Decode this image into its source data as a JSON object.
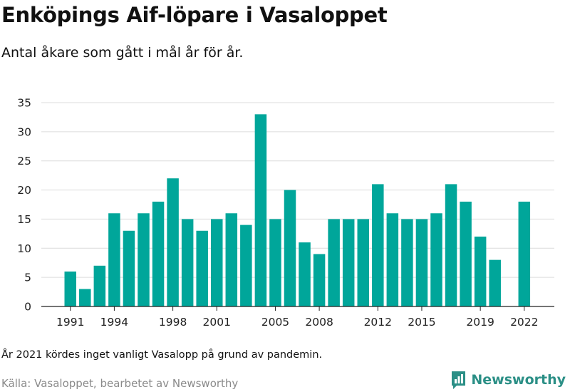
{
  "header": {
    "title": "Enköpings Aif-löpare i Vasaloppet",
    "subtitle": "Antal åkare som gått i mål år för år."
  },
  "footer": {
    "note": "År 2021 kördes inget vanligt Vasalopp på grund av pandemin.",
    "source": "Källa: Vasaloppet, bearbetet av Newsworthy",
    "brand": "Newsworthy"
  },
  "colors": {
    "bar": "#00a69a",
    "grid": "#dcdcdc",
    "axis": "#222222",
    "brand": "#2b8f86"
  },
  "icons": {
    "brand_logo": "newsworthy-logo-icon"
  },
  "chart_data": {
    "type": "bar",
    "title": "Enköpings Aif-löpare i Vasaloppet",
    "subtitle": "Antal åkare som gått i mål år för år.",
    "xlabel": "",
    "ylabel": "",
    "categories": [
      1991,
      1992,
      1993,
      1994,
      1995,
      1996,
      1997,
      1998,
      1999,
      2000,
      2001,
      2002,
      2003,
      2004,
      2005,
      2006,
      2007,
      2008,
      2009,
      2010,
      2011,
      2012,
      2013,
      2014,
      2015,
      2016,
      2017,
      2018,
      2019,
      2020,
      2021,
      2022
    ],
    "values": [
      6,
      3,
      7,
      16,
      13,
      16,
      18,
      22,
      15,
      13,
      15,
      16,
      14,
      33,
      15,
      20,
      11,
      9,
      15,
      15,
      15,
      21,
      16,
      15,
      15,
      16,
      21,
      18,
      12,
      8,
      null,
      18
    ],
    "x_tick_labels": [
      "1991",
      "1994",
      "1998",
      "2001",
      "2005",
      "2008",
      "2012",
      "2015",
      "2019",
      "2022"
    ],
    "y_ticks": [
      0,
      5,
      10,
      15,
      20,
      25,
      30,
      35
    ],
    "ylim": [
      0,
      35
    ],
    "grid": "horizontal",
    "legend": "none"
  }
}
